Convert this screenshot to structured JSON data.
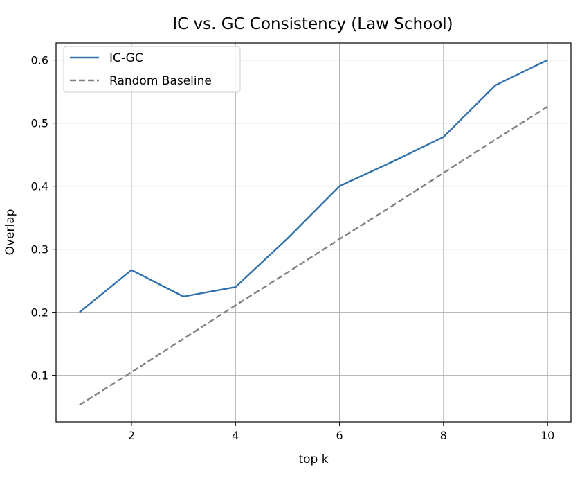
{
  "chart_data": {
    "type": "line",
    "title": "IC vs. GC Consistency (Law School)",
    "xlabel": "top k",
    "ylabel": "Overlap",
    "x": [
      1,
      2,
      3,
      4,
      5,
      6,
      7,
      8,
      9,
      10
    ],
    "series": [
      {
        "name": "IC-GC",
        "values": [
          0.2,
          0.267,
          0.225,
          0.24,
          0.317,
          0.4,
          0.438,
          0.478,
          0.56,
          0.6
        ],
        "color": "#2f71ad",
        "style": "solid"
      },
      {
        "name": "Random Baseline",
        "values": [
          0.053,
          0.105,
          0.158,
          0.211,
          0.263,
          0.316,
          0.368,
          0.421,
          0.474,
          0.526
        ],
        "color": "#808080",
        "style": "dashed"
      }
    ],
    "xlim": [
      0.55,
      10.45
    ],
    "ylim": [
      0.026,
      0.627
    ],
    "xticks": [
      2,
      4,
      6,
      8,
      10
    ],
    "xtick_labels": [
      "2",
      "4",
      "6",
      "8",
      "10"
    ],
    "yticks": [
      0.1,
      0.2,
      0.3,
      0.4,
      0.5,
      0.6
    ],
    "ytick_labels": [
      "0.1",
      "0.2",
      "0.3",
      "0.4",
      "0.5",
      "0.6"
    ],
    "grid": true,
    "legend_position": "upper-left"
  }
}
